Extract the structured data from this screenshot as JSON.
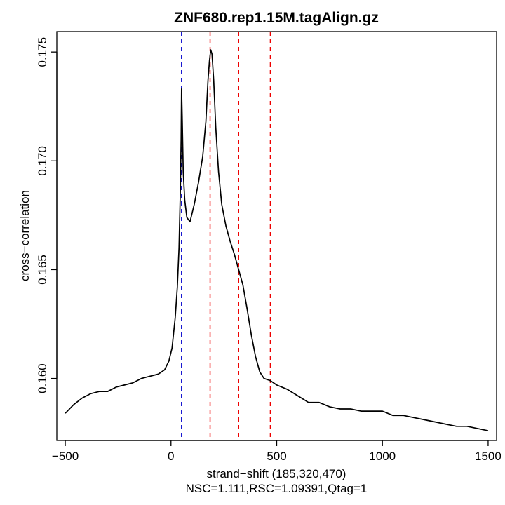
{
  "chart_data": {
    "type": "line",
    "title": "ZNF680.rep1.15M.tagAlign.gz",
    "xlabel": "strand−shift (185,320,470)",
    "subtitle": "NSC=1.111,RSC=1.09391,Qtag=1",
    "ylabel": "cross−correlation",
    "xlim": [
      -540,
      1540
    ],
    "ylim": [
      0.15715,
      0.17594
    ],
    "x_ticks": [
      -500,
      0,
      500,
      1000,
      1500
    ],
    "x_tick_labels": [
      "−500",
      "0",
      "500",
      "1000",
      "1500"
    ],
    "y_ticks": [
      0.16,
      0.165,
      0.17,
      0.175
    ],
    "y_tick_labels": [
      "0.160",
      "0.165",
      "0.170",
      "0.175"
    ],
    "grid": false,
    "vlines": [
      {
        "x": 50,
        "color": "#0000cc",
        "style": "dashed"
      },
      {
        "x": 185,
        "color": "#ee0000",
        "style": "dashed"
      },
      {
        "x": 320,
        "color": "#ee0000",
        "style": "dashed"
      },
      {
        "x": 470,
        "color": "#ee0000",
        "style": "dashed"
      }
    ],
    "series": [
      {
        "color": "#000000",
        "points": [
          [
            -500,
            0.1584
          ],
          [
            -460,
            0.1588
          ],
          [
            -420,
            0.1591
          ],
          [
            -380,
            0.1593
          ],
          [
            -340,
            0.1594
          ],
          [
            -300,
            0.1594
          ],
          [
            -260,
            0.1596
          ],
          [
            -220,
            0.1597
          ],
          [
            -180,
            0.1598
          ],
          [
            -140,
            0.16
          ],
          [
            -100,
            0.1601
          ],
          [
            -60,
            0.1602
          ],
          [
            -30,
            0.1604
          ],
          [
            -10,
            0.1608
          ],
          [
            5,
            0.1614
          ],
          [
            20,
            0.1628
          ],
          [
            30,
            0.1642
          ],
          [
            38,
            0.166
          ],
          [
            44,
            0.1685
          ],
          [
            48,
            0.171
          ],
          [
            50,
            0.1733
          ],
          [
            53,
            0.172
          ],
          [
            58,
            0.1695
          ],
          [
            65,
            0.1682
          ],
          [
            75,
            0.1674
          ],
          [
            90,
            0.1672
          ],
          [
            110,
            0.168
          ],
          [
            130,
            0.169
          ],
          [
            150,
            0.1702
          ],
          [
            165,
            0.1718
          ],
          [
            175,
            0.1737
          ],
          [
            182,
            0.1746
          ],
          [
            188,
            0.1751
          ],
          [
            194,
            0.1749
          ],
          [
            202,
            0.1737
          ],
          [
            212,
            0.1715
          ],
          [
            225,
            0.1695
          ],
          [
            240,
            0.168
          ],
          [
            260,
            0.167
          ],
          [
            280,
            0.1663
          ],
          [
            300,
            0.1657
          ],
          [
            320,
            0.165
          ],
          [
            340,
            0.1643
          ],
          [
            360,
            0.1632
          ],
          [
            380,
            0.162
          ],
          [
            400,
            0.161
          ],
          [
            420,
            0.1603
          ],
          [
            440,
            0.16
          ],
          [
            470,
            0.1599
          ],
          [
            500,
            0.1597
          ],
          [
            550,
            0.1595
          ],
          [
            600,
            0.1592
          ],
          [
            650,
            0.1589
          ],
          [
            700,
            0.1589
          ],
          [
            750,
            0.1587
          ],
          [
            800,
            0.1586
          ],
          [
            850,
            0.1586
          ],
          [
            900,
            0.1585
          ],
          [
            950,
            0.1585
          ],
          [
            1000,
            0.1585
          ],
          [
            1050,
            0.1583
          ],
          [
            1100,
            0.1583
          ],
          [
            1150,
            0.1582
          ],
          [
            1200,
            0.1581
          ],
          [
            1250,
            0.158
          ],
          [
            1300,
            0.1579
          ],
          [
            1350,
            0.1578
          ],
          [
            1400,
            0.1578
          ],
          [
            1450,
            0.1577
          ],
          [
            1500,
            0.1576
          ]
        ]
      }
    ]
  }
}
